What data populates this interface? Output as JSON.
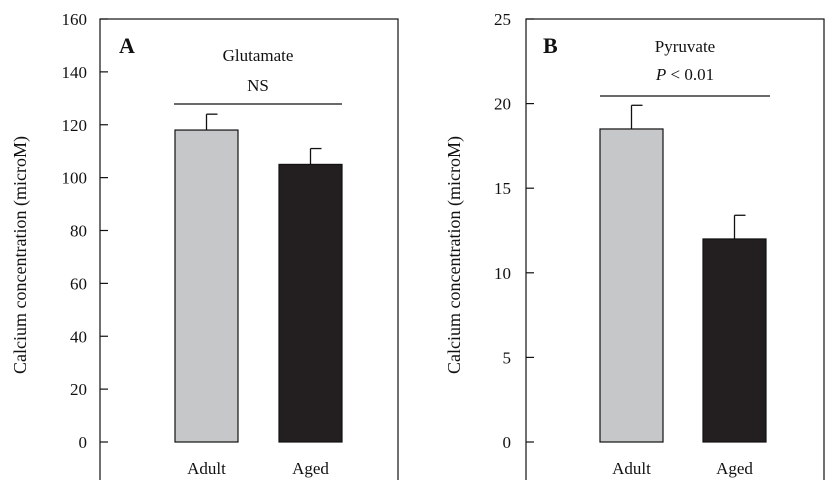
{
  "colors": {
    "adult": "#c6c7c9",
    "aged": "#231f20",
    "axis": "#111111"
  },
  "chart_data": [
    {
      "type": "bar",
      "panel": "A",
      "title": "Glutamate",
      "significance": {
        "prefix": "NS",
        "suffix": ""
      },
      "ylabel": "Calcium concentration (microM)",
      "ylim": [
        0,
        160
      ],
      "yticks": [
        0,
        20,
        40,
        60,
        80,
        100,
        120,
        140,
        160
      ],
      "yticklabels": [
        "0",
        "20",
        "40",
        "60",
        "80",
        "100",
        "120",
        "140",
        "160"
      ],
      "categories": [
        "Adult",
        "Aged"
      ],
      "values": [
        118,
        105
      ],
      "errors": [
        6,
        6
      ]
    },
    {
      "type": "bar",
      "panel": "B",
      "title": "Pyruvate",
      "significance": {
        "prefix": "P",
        "suffix": " < 0.01"
      },
      "ylabel": "Calcium concentration (microM)",
      "ylim": [
        0,
        25
      ],
      "yticks": [
        0,
        5,
        10,
        15,
        20,
        25
      ],
      "yticklabels": [
        "0",
        "5",
        "10",
        "15",
        "20",
        "25"
      ],
      "categories": [
        "Adult",
        "Aged"
      ],
      "values": [
        18.5,
        12
      ],
      "errors": [
        1.4,
        1.4
      ]
    }
  ]
}
